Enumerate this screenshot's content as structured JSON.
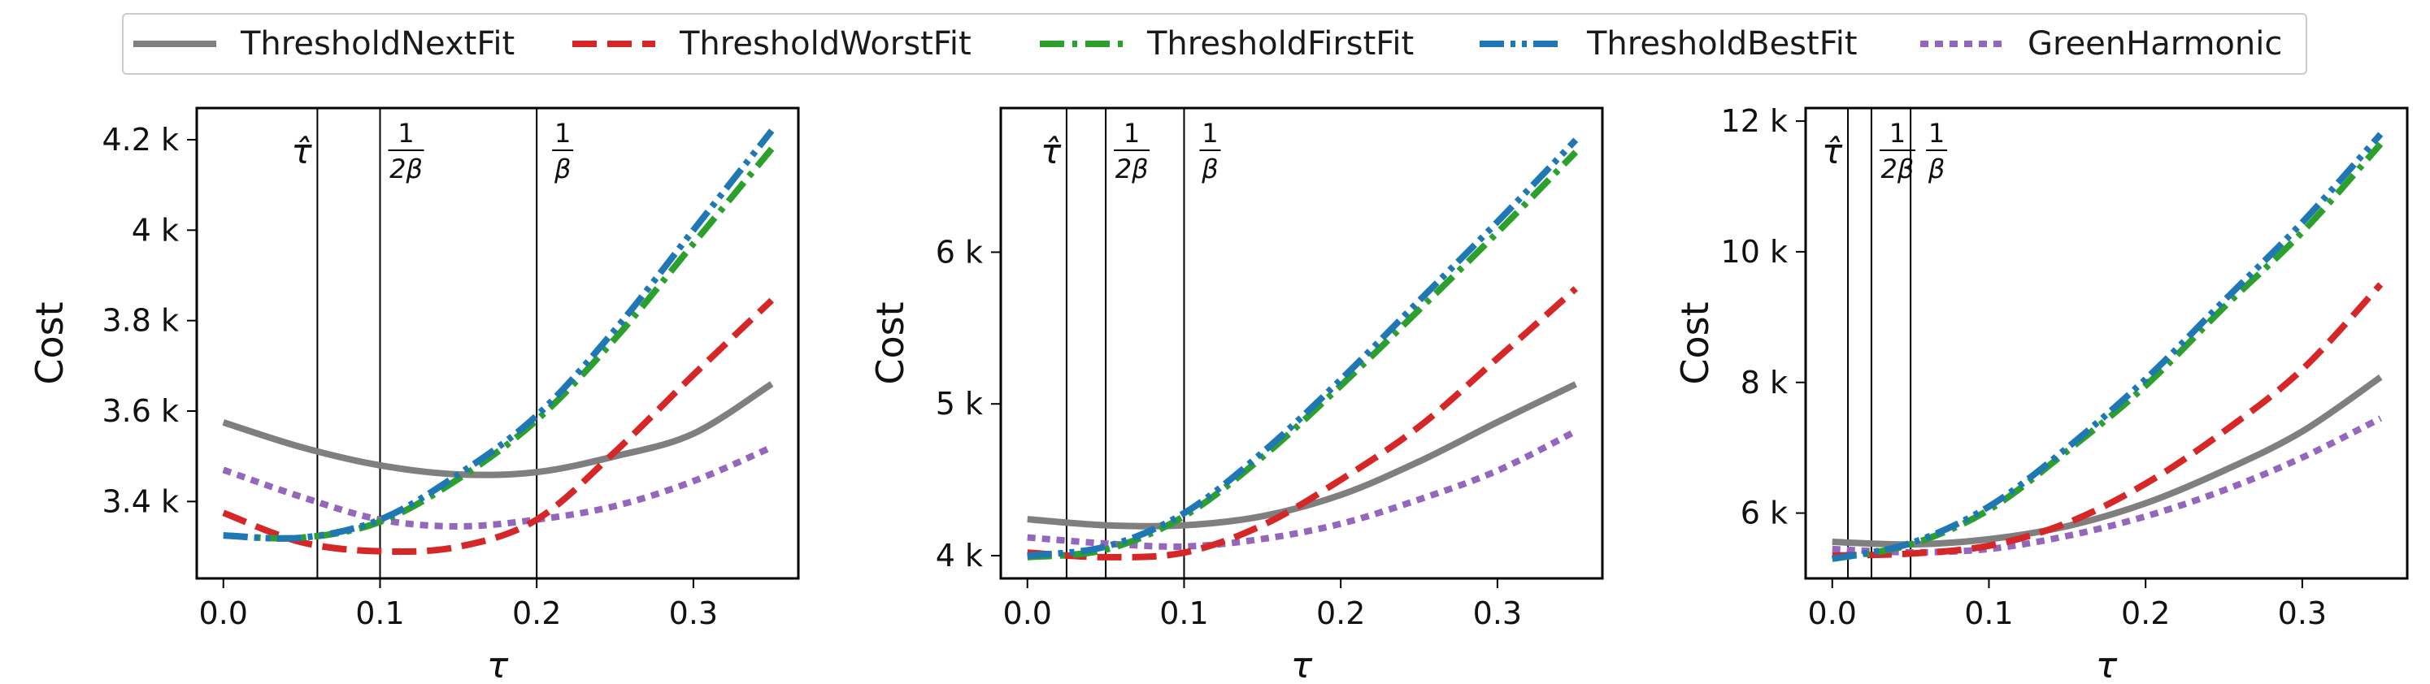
{
  "legend": {
    "items": [
      {
        "label": "ThresholdNextFit",
        "color": "#7f7f7f",
        "dash": "solid"
      },
      {
        "label": "ThresholdWorstFit",
        "color": "#d62728",
        "dash": "dashed"
      },
      {
        "label": "ThresholdFirstFit",
        "color": "#2ca02c",
        "dash": "dashdot"
      },
      {
        "label": "ThresholdBestFit",
        "color": "#1f77b4",
        "dash": "dashdotdot"
      },
      {
        "label": "GreenHarmonic",
        "color": "#9467bd",
        "dash": "dotted"
      }
    ]
  },
  "chart_data": [
    {
      "type": "line",
      "xlabel": "τ",
      "ylabel": "Cost",
      "xlim": [
        -0.017,
        0.367
      ],
      "ylim": [
        3230,
        4270
      ],
      "xticks": [
        0.0,
        0.1,
        0.2,
        0.3
      ],
      "xtick_labels": [
        "0.0",
        "0.1",
        "0.2",
        "0.3"
      ],
      "yticks": [
        3400,
        3600,
        3800,
        4000,
        4200
      ],
      "ytick_labels": [
        "3.4 k",
        "3.6 k",
        "3.8 k",
        "4 k",
        "4.2 k"
      ],
      "vlines": [
        {
          "x": 0.06,
          "label": "τ̂"
        },
        {
          "x": 0.1,
          "label": "1/2β"
        },
        {
          "x": 0.2,
          "label": "1/β"
        }
      ],
      "x": [
        0.0,
        0.05,
        0.1,
        0.15,
        0.2,
        0.25,
        0.3,
        0.35
      ],
      "series": [
        {
          "name": "ThresholdNextFit",
          "values": [
            3575,
            3520,
            3480,
            3460,
            3465,
            3500,
            3550,
            3660
          ]
        },
        {
          "name": "ThresholdWorstFit",
          "values": [
            3375,
            3310,
            3290,
            3300,
            3360,
            3510,
            3680,
            3845
          ]
        },
        {
          "name": "ThresholdFirstFit",
          "values": [
            3325,
            3320,
            3355,
            3450,
            3580,
            3760,
            3970,
            4180
          ]
        },
        {
          "name": "ThresholdBestFit",
          "values": [
            3325,
            3320,
            3360,
            3460,
            3590,
            3780,
            4000,
            4220
          ]
        },
        {
          "name": "GreenHarmonic",
          "values": [
            3470,
            3410,
            3360,
            3345,
            3360,
            3390,
            3445,
            3520
          ]
        }
      ]
    },
    {
      "type": "line",
      "xlabel": "τ",
      "ylabel": "Cost",
      "xlim": [
        -0.017,
        0.367
      ],
      "ylim": [
        3850,
        6950
      ],
      "xticks": [
        0.0,
        0.1,
        0.2,
        0.3
      ],
      "xtick_labels": [
        "0.0",
        "0.1",
        "0.2",
        "0.3"
      ],
      "yticks": [
        4000,
        5000,
        6000
      ],
      "ytick_labels": [
        "4 k",
        "5 k",
        "6 k"
      ],
      "vlines": [
        {
          "x": 0.025,
          "label": "τ̂"
        },
        {
          "x": 0.05,
          "label": "1/2β"
        },
        {
          "x": 0.1,
          "label": "1/β"
        }
      ],
      "x": [
        0.0,
        0.05,
        0.1,
        0.15,
        0.2,
        0.25,
        0.3,
        0.35
      ],
      "series": [
        {
          "name": "ThresholdNextFit",
          "values": [
            4240,
            4200,
            4200,
            4260,
            4400,
            4620,
            4880,
            5130
          ]
        },
        {
          "name": "ThresholdWorstFit",
          "values": [
            4020,
            3990,
            4020,
            4200,
            4500,
            4850,
            5300,
            5760
          ]
        },
        {
          "name": "ThresholdFirstFit",
          "values": [
            3990,
            4040,
            4260,
            4650,
            5120,
            5620,
            6130,
            6660
          ]
        },
        {
          "name": "ThresholdBestFit",
          "values": [
            4000,
            4060,
            4280,
            4680,
            5160,
            5680,
            6200,
            6740
          ]
        },
        {
          "name": "GreenHarmonic",
          "values": [
            4120,
            4080,
            4060,
            4110,
            4210,
            4370,
            4560,
            4820
          ]
        }
      ]
    },
    {
      "type": "line",
      "xlabel": "τ",
      "ylabel": "Cost",
      "xlim": [
        -0.017,
        0.367
      ],
      "ylim": [
        5000,
        12200
      ],
      "xticks": [
        0.0,
        0.1,
        0.2,
        0.3
      ],
      "xtick_labels": [
        "0.0",
        "0.1",
        "0.2",
        "0.3"
      ],
      "yticks": [
        6000,
        8000,
        10000,
        12000
      ],
      "ytick_labels": [
        "6 k",
        "8 k",
        "10 k",
        "12 k"
      ],
      "vlines": [
        {
          "x": 0.01,
          "label": "τ̂"
        },
        {
          "x": 0.025,
          "label": "1/2β"
        },
        {
          "x": 0.05,
          "label": "1/β"
        }
      ],
      "x": [
        0.0,
        0.05,
        0.1,
        0.15,
        0.2,
        0.25,
        0.3,
        0.35
      ],
      "series": [
        {
          "name": "ThresholdNextFit",
          "values": [
            5560,
            5520,
            5600,
            5800,
            6150,
            6650,
            7250,
            8080
          ]
        },
        {
          "name": "ThresholdWorstFit",
          "values": [
            5350,
            5380,
            5500,
            5850,
            6450,
            7250,
            8200,
            9500
          ]
        },
        {
          "name": "ThresholdFirstFit",
          "values": [
            5300,
            5520,
            6050,
            6950,
            7950,
            9150,
            10300,
            11650
          ]
        },
        {
          "name": "ThresholdBestFit",
          "values": [
            5300,
            5540,
            6100,
            7000,
            8050,
            9250,
            10450,
            11800
          ]
        },
        {
          "name": "GreenHarmonic",
          "values": [
            5450,
            5400,
            5450,
            5650,
            5950,
            6350,
            6850,
            7450
          ]
        }
      ]
    }
  ]
}
